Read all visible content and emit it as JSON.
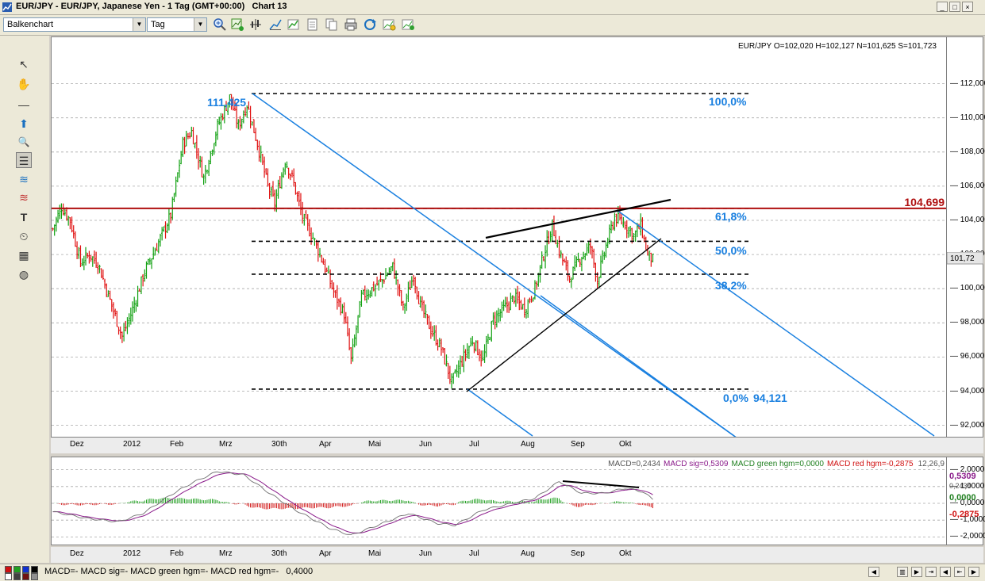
{
  "window": {
    "title": "EUR/JPY - EUR/JPY, Japanese Yen - 1 Tag (GMT+00:00)",
    "chart_name": "Chart 13",
    "min_glyph": "_",
    "max_glyph": "□",
    "close_glyph": "×"
  },
  "toolbar": {
    "chart_type": "Balkenchart",
    "period": "Tag",
    "dropdown_glyph": "▼"
  },
  "tools": {
    "pointer": "↖",
    "hand": "✋",
    "line": "—",
    "arrow": "⬆",
    "zoom": "🔍",
    "grid": "☰",
    "fib": "≋",
    "text": "T",
    "clock": "⏲",
    "calc": "▦",
    "paint": "◍"
  },
  "chart": {
    "ohlc_text": "EUR/JPY O=102,020 H=102,127 N=101,625 S=101,723",
    "last_price": "101,72",
    "level_high": "111,425",
    "level_resistance": "104,699",
    "level_low": "94,121",
    "fib_100": "100,0%",
    "fib_618": "61,8%",
    "fib_50": "50,0%",
    "fib_382": "38,2%",
    "fib_0": "0,0%",
    "colors": {
      "up": "#10a010",
      "down": "#e01010",
      "channel": "#1a80e0",
      "resistance": "#b01010",
      "fibtext": "#1a80e0"
    },
    "y_ticks": [
      "112,000",
      "110,000",
      "108,000",
      "106,000",
      "104,000",
      "102,000",
      "100,000",
      "98,000",
      "96,000",
      "94,000",
      "92,000"
    ],
    "x_ticks": [
      "Dez",
      "2012",
      "Feb",
      "Mrz",
      "30th",
      "Apr",
      "Mai",
      "Jun",
      "Jul",
      "Aug",
      "Sep",
      "Okt"
    ]
  },
  "macd": {
    "label_macd": "MACD=0,2434",
    "label_sig": "MACD sig=0,5309",
    "label_green": "MACD green hgm=0,0000",
    "label_red": "MACD red hgm=-0,2875",
    "label_params": "12,26,9",
    "y_ticks": [
      "2,0000",
      "1,0000",
      "0,0000",
      "-1,0000",
      "-2,0000"
    ],
    "tag_sig": "0,5309",
    "tag_macd": "0,2434",
    "tag_green": "0,0000",
    "tag_red": "-0,2875"
  },
  "status": {
    "text": "MACD=- MACD sig=- MACD green hgm=- MACD red hgm=-",
    "value": "0,4000",
    "nav_glyphs": [
      "◀",
      "▶",
      "▥",
      "▶",
      "⇥",
      "◀",
      "⇤"
    ]
  },
  "chart_data": {
    "type": "bar",
    "title": "EUR/JPY - EUR/JPY, Japanese Yen - 1 Tag (GMT+00:00)",
    "ylim": [
      91,
      114
    ],
    "last": {
      "open": 102.02,
      "high": 102.127,
      "low": 101.625,
      "close": 101.723
    },
    "anchors": [
      [
        0,
        103.5
      ],
      [
        5,
        104.8
      ],
      [
        10,
        104.0
      ],
      [
        16,
        101.5
      ],
      [
        21,
        102.0
      ],
      [
        26,
        101.5
      ],
      [
        34,
        99.0
      ],
      [
        40,
        97.2
      ],
      [
        45,
        98.5
      ],
      [
        53,
        101.0
      ],
      [
        60,
        102.5
      ],
      [
        68,
        104.3
      ],
      [
        75,
        108.5
      ],
      [
        80,
        109.2
      ],
      [
        87,
        106.5
      ],
      [
        95,
        109.5
      ],
      [
        102,
        111.2
      ],
      [
        107,
        109.5
      ],
      [
        112,
        110.8
      ],
      [
        118,
        108.5
      ],
      [
        124,
        106.0
      ],
      [
        128,
        105.0
      ],
      [
        134,
        107.5
      ],
      [
        138,
        106.5
      ],
      [
        144,
        104.2
      ],
      [
        150,
        103.0
      ],
      [
        156,
        101.5
      ],
      [
        162,
        99.8
      ],
      [
        168,
        98.5
      ],
      [
        172,
        95.8
      ],
      [
        178,
        99.5
      ],
      [
        184,
        100.0
      ],
      [
        190,
        100.5
      ],
      [
        196,
        101.3
      ],
      [
        202,
        98.8
      ],
      [
        208,
        100.8
      ],
      [
        212,
        99.0
      ],
      [
        218,
        97.6
      ],
      [
        224,
        96.5
      ],
      [
        230,
        94.5
      ],
      [
        236,
        95.8
      ],
      [
        242,
        97.0
      ],
      [
        248,
        95.8
      ],
      [
        254,
        98.2
      ],
      [
        260,
        98.8
      ],
      [
        266,
        99.5
      ],
      [
        272,
        98.8
      ],
      [
        278,
        100.0
      ],
      [
        283,
        102.0
      ],
      [
        288,
        103.7
      ],
      [
        292,
        102.2
      ],
      [
        298,
        100.6
      ],
      [
        304,
        101.8
      ],
      [
        310,
        102.5
      ],
      [
        314,
        100.5
      ],
      [
        319,
        102.5
      ],
      [
        324,
        104.2
      ],
      [
        330,
        103.8
      ],
      [
        335,
        103.1
      ],
      [
        339,
        103.7
      ],
      [
        343,
        102.0
      ],
      [
        346,
        101.7
      ]
    ],
    "fib_levels": [
      {
        "level": "100,0%",
        "value": 111.425
      },
      {
        "level": "61,8%",
        "value": 104.699
      },
      {
        "level": "50,0%",
        "value": 102.773
      },
      {
        "level": "38,2%",
        "value": 100.847
      },
      {
        "level": "0,0%",
        "value": 94.121
      }
    ],
    "resistance": 104.699,
    "macd_ylim": [
      -2.3,
      2.3
    ],
    "macd_anchors": [
      [
        0,
        -0.5
      ],
      [
        20,
        -0.9
      ],
      [
        38,
        -1.1
      ],
      [
        52,
        -0.6
      ],
      [
        68,
        0.5
      ],
      [
        80,
        1.2
      ],
      [
        95,
        1.9
      ],
      [
        110,
        1.7
      ],
      [
        125,
        0.6
      ],
      [
        140,
        -0.4
      ],
      [
        160,
        -1.5
      ],
      [
        172,
        -1.9
      ],
      [
        190,
        -1.2
      ],
      [
        205,
        -0.6
      ],
      [
        222,
        -1.2
      ],
      [
        232,
        -1.3
      ],
      [
        248,
        -0.4
      ],
      [
        265,
        0.0
      ],
      [
        278,
        0.3
      ],
      [
        292,
        1.3
      ],
      [
        305,
        0.6
      ],
      [
        318,
        0.6
      ],
      [
        330,
        0.9
      ],
      [
        340,
        0.7
      ],
      [
        346,
        0.24
      ]
    ]
  }
}
